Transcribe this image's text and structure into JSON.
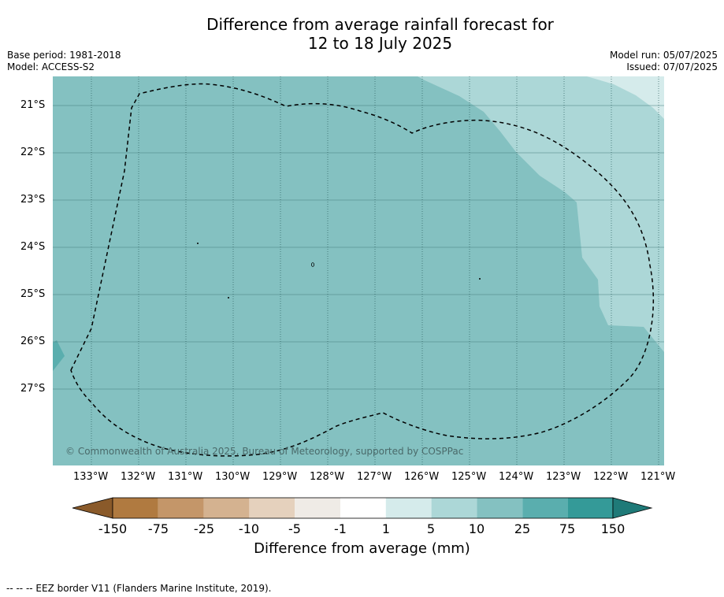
{
  "title_line1": "Difference from average rainfall forecast for",
  "title_line2": "12 to 18 July 2025",
  "base_period": "Base period: 1981-2018",
  "model": "Model: ACCESS-S2",
  "model_run": "Model run: 05/07/2025",
  "issued": "Issued: 07/07/2025",
  "copyright": "© Commonwealth of Australia 2025, Bureau of Meteorology, supported by COSPPac",
  "lat_labels": [
    "21°S",
    "22°S",
    "23°S",
    "24°S",
    "25°S",
    "26°S",
    "27°S"
  ],
  "lon_labels": [
    "133°W",
    "132°W",
    "131°W",
    "130°W",
    "129°W",
    "128°W",
    "127°W",
    "126°W",
    "125°W",
    "124°W",
    "123°W",
    "122°W",
    "121°W"
  ],
  "colorbar": {
    "labels": [
      "-150",
      "-75",
      "-25",
      "-10",
      "-5",
      "-1",
      "1",
      "5",
      "10",
      "25",
      "75",
      "150"
    ],
    "colors": [
      "#b07a40",
      "#c49669",
      "#d4b290",
      "#e5d1bd",
      "#efebe6",
      "#ffffff",
      "#d5ebeb",
      "#acd7d7",
      "#84c1c1",
      "#5aaeae",
      "#349a98"
    ],
    "under_color": "#8a5a2a",
    "over_color": "#1f7a78",
    "title": "Difference from average (mm)"
  },
  "map_colors": {
    "band_10_25": "#84c1c1",
    "band_5_10": "#acd7d7",
    "band_1_5": "#d5ebeb",
    "band_25_75": "#5aaeae"
  },
  "footer": "--  --  -- EEZ border V11 (Flanders Marine Institute, 2019)."
}
